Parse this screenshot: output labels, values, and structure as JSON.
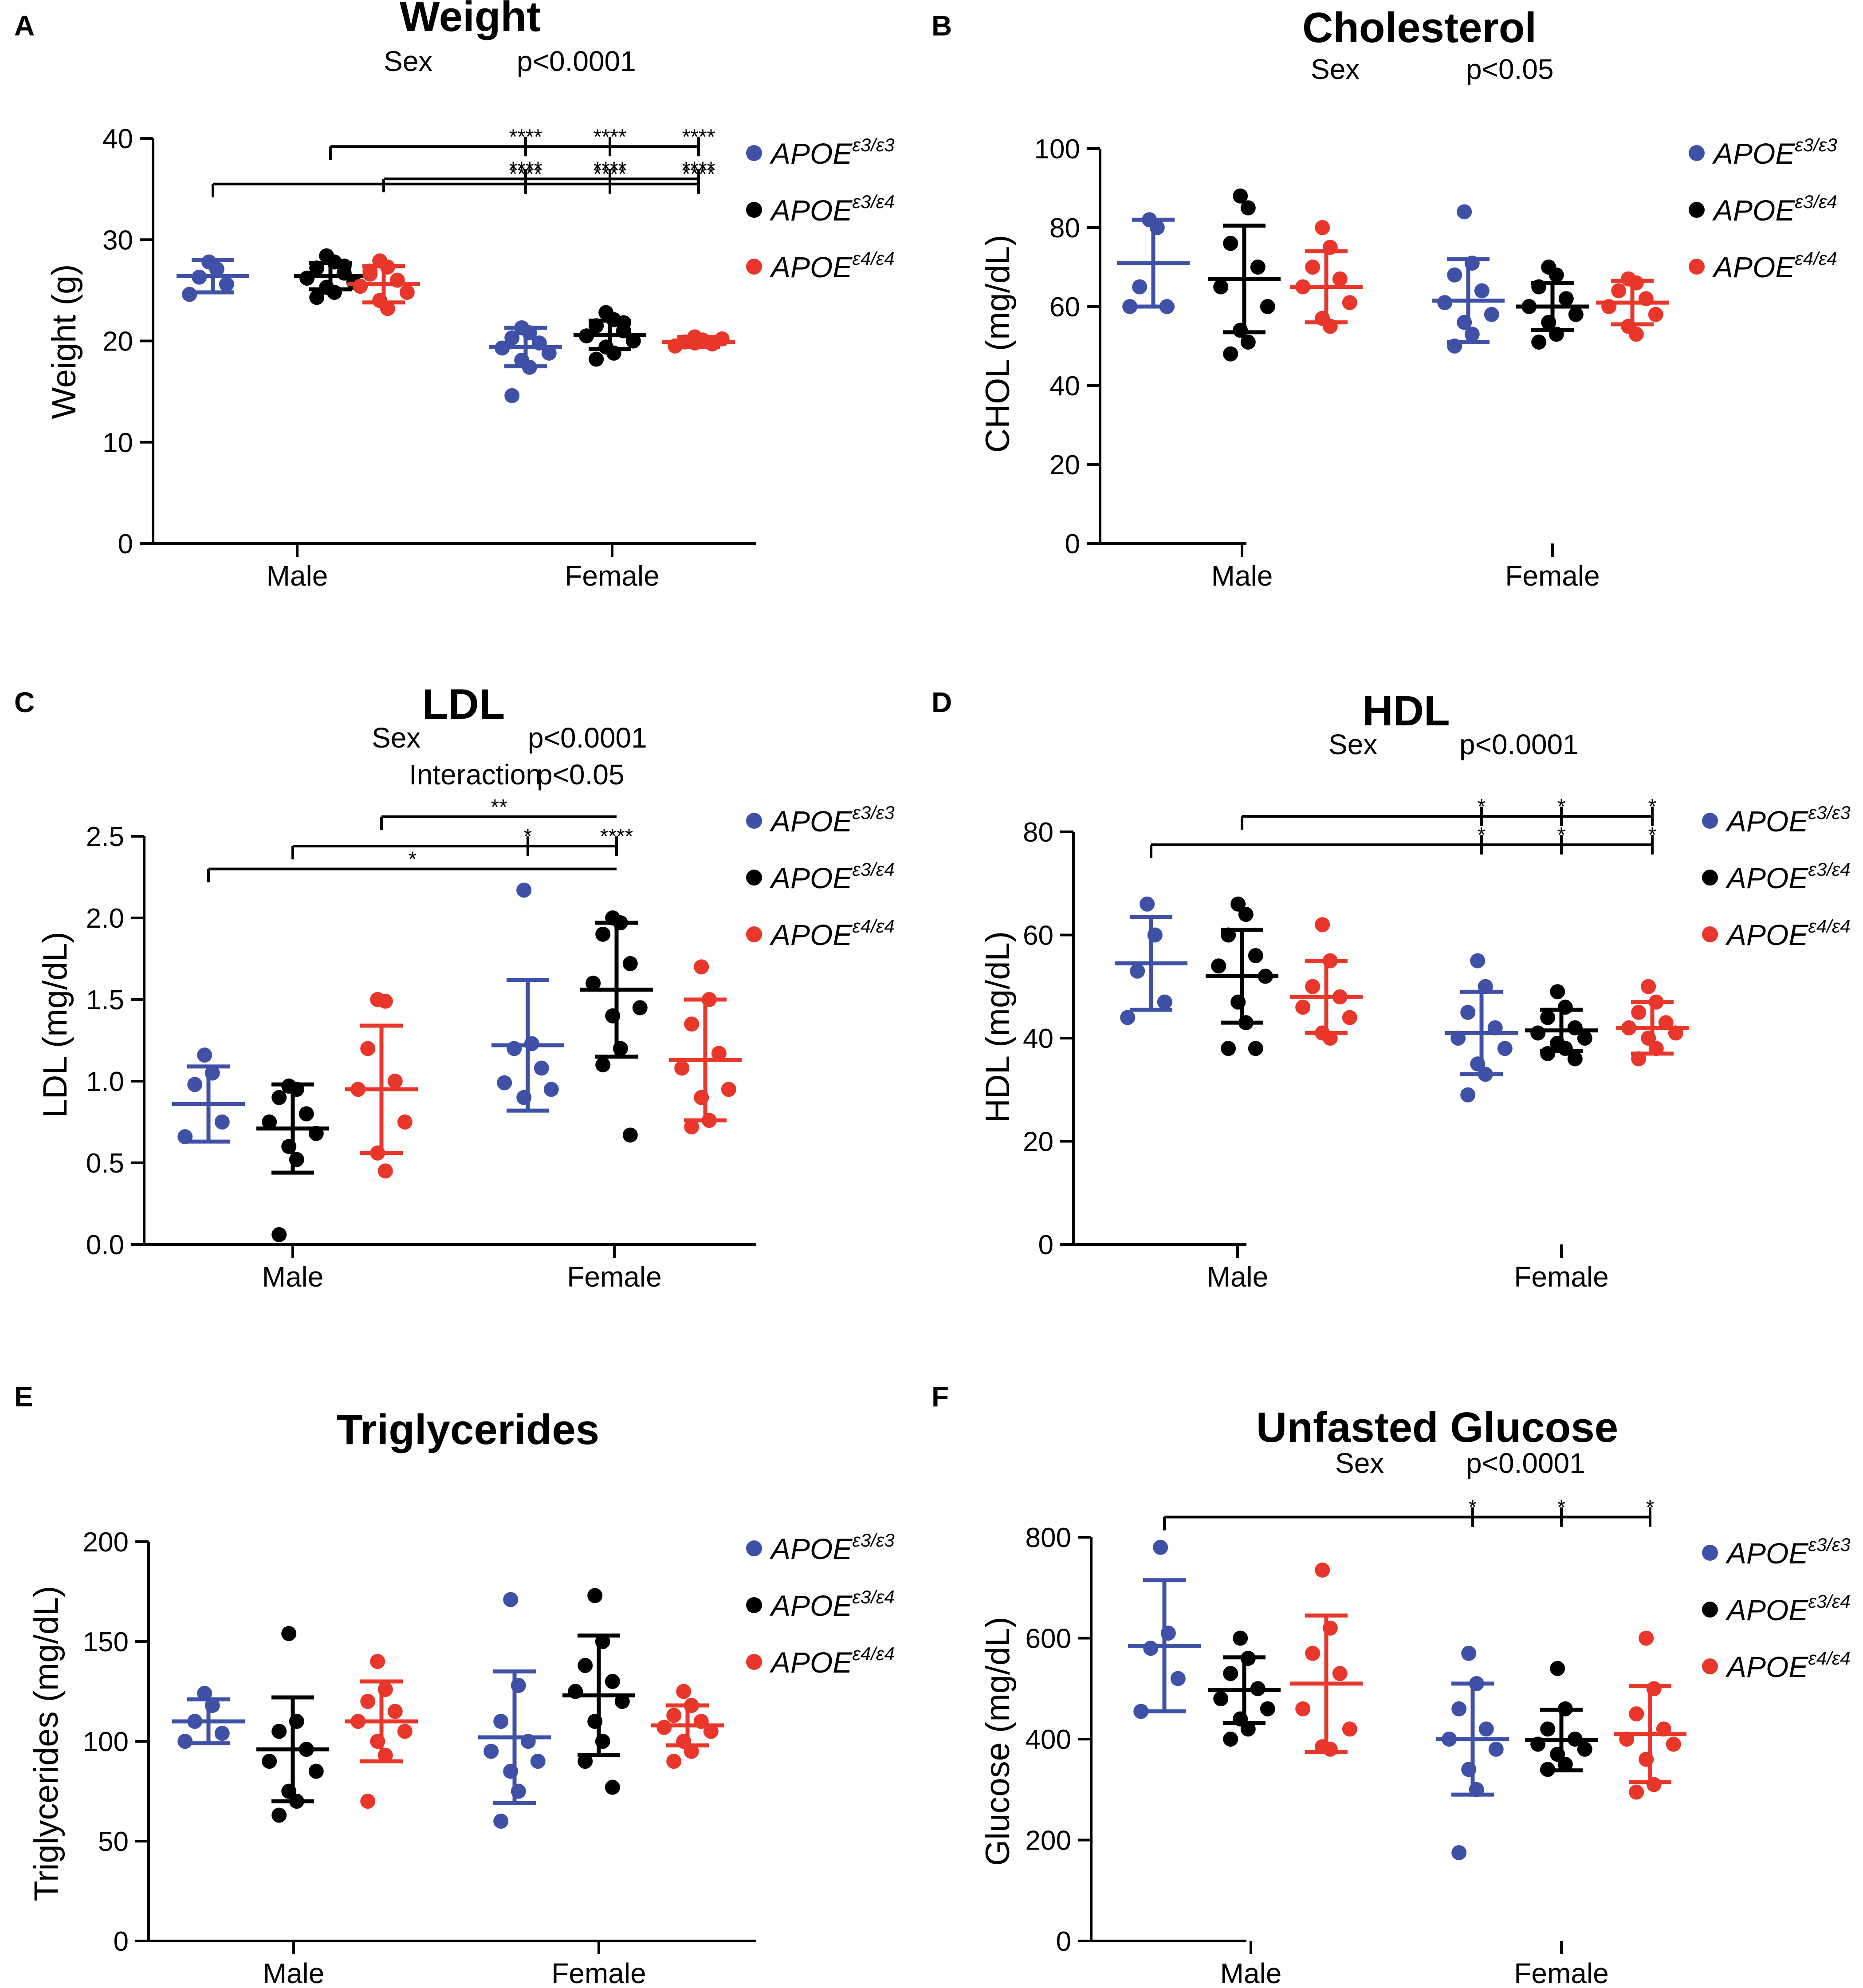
{
  "colors": {
    "e33": "#3f51a6",
    "e34": "#000000",
    "e44": "#e8372a"
  },
  "legend": [
    {
      "base": "APOE",
      "sup": "ε3/ε3",
      "color": "#3f51a6"
    },
    {
      "base": "APOE",
      "sup": "ε3/ε4",
      "color": "#000000"
    },
    {
      "base": "APOE",
      "sup": "ε4/ε4",
      "color": "#e8372a"
    }
  ],
  "chart_data": [
    {
      "panel": "A",
      "type": "scatter",
      "title": "Weight",
      "stats": [
        {
          "label": "Sex",
          "value": "p<0.0001"
        }
      ],
      "ylabel": "Weight (g)",
      "ylim": [
        0,
        40
      ],
      "yticks": [
        "0",
        "10",
        "20",
        "30",
        "40"
      ],
      "categories": [
        "Male",
        "Female"
      ],
      "series": [
        {
          "name": "APOEε3/ε3",
          "sex": "Male",
          "mean": 26.4,
          "sd": 1.6,
          "points": [
            27.8,
            27.1,
            26.3,
            25.6,
            24.6
          ]
        },
        {
          "name": "APOEε3/ε4",
          "sex": "Male",
          "mean": 26.4,
          "sd": 1.3,
          "points": [
            28.4,
            27.8,
            27.2,
            26.7,
            26.2,
            25.8,
            25.3,
            24.8,
            24.3,
            27.4
          ]
        },
        {
          "name": "APOEε4/ε4",
          "sex": "Male",
          "mean": 25.6,
          "sd": 1.8,
          "points": [
            27.9,
            27.3,
            26.6,
            26.0,
            25.4,
            24.8,
            24.0,
            23.2,
            26.9
          ]
        },
        {
          "name": "APOEε3/ε3",
          "sex": "Female",
          "mean": 19.4,
          "sd": 1.9,
          "points": [
            21.3,
            20.8,
            20.3,
            19.8,
            19.3,
            18.8,
            18.1,
            17.4,
            14.6
          ]
        },
        {
          "name": "APOEε3/ε4",
          "sex": "Female",
          "mean": 20.6,
          "sd": 1.4,
          "points": [
            22.8,
            22.1,
            21.5,
            21.0,
            20.5,
            20.0,
            19.4,
            18.8,
            18.2,
            21.8
          ]
        },
        {
          "name": "APOEε4/ε4",
          "sex": "Female",
          "mean": 19.9,
          "sd": 0.5,
          "points": [
            20.4,
            20.1,
            19.9,
            19.7,
            19.5,
            20.2,
            19.8,
            20.0
          ]
        }
      ],
      "brackets": [
        {
          "from": "Male|APOEε4/ε4",
          "y": 36.0,
          "stars": [
            "****",
            "****",
            "****"
          ]
        },
        {
          "from": "Male|APOEε3/ε4",
          "y": 39.2,
          "stars": [
            "****",
            "****",
            "****"
          ]
        },
        {
          "from": "Male|APOEε3/ε3",
          "y": 35.5,
          "stars": [
            "****",
            "****",
            "****"
          ]
        }
      ]
    },
    {
      "panel": "B",
      "type": "scatter",
      "title": "Cholesterol",
      "stats": [
        {
          "label": "Sex",
          "value": "p<0.05"
        }
      ],
      "ylabel": "CHOL (mg/dL)",
      "ylim": [
        0,
        100
      ],
      "yticks": [
        "0",
        "20",
        "40",
        "60",
        "80",
        "100"
      ],
      "categories": [
        "Male",
        "Female"
      ],
      "series": [
        {
          "name": "APOEε3/ε3",
          "sex": "Male",
          "mean": 71,
          "sd": 11,
          "points": [
            82,
            80,
            65,
            60,
            60
          ]
        },
        {
          "name": "APOEε3/ε4",
          "sex": "Male",
          "mean": 67,
          "sd": 13.5,
          "points": [
            88,
            85,
            76,
            70,
            65,
            60,
            54,
            51,
            48
          ]
        },
        {
          "name": "APOEε4/ε4",
          "sex": "Male",
          "mean": 65,
          "sd": 9,
          "points": [
            80,
            75,
            70,
            67,
            65,
            61,
            57,
            55
          ]
        },
        {
          "name": "APOEε3/ε3",
          "sex": "Female",
          "mean": 61.5,
          "sd": 10.5,
          "points": [
            84,
            71,
            68,
            64,
            61,
            58,
            56,
            53,
            50
          ]
        },
        {
          "name": "APOEε3/ε4",
          "sex": "Female",
          "mean": 60,
          "sd": 6,
          "points": [
            70,
            68,
            65,
            62,
            60,
            58,
            56,
            53,
            51
          ]
        },
        {
          "name": "APOEε4/ε4",
          "sex": "Female",
          "mean": 61,
          "sd": 5.5,
          "points": [
            67,
            66,
            64,
            62,
            60,
            58,
            55,
            53
          ]
        }
      ],
      "brackets": []
    },
    {
      "panel": "C",
      "type": "scatter",
      "title": "LDL",
      "stats": [
        {
          "label": "Sex",
          "value": "p<0.0001"
        },
        {
          "label": "Interaction",
          "value": "p<0.05"
        }
      ],
      "ylabel": "LDL (mg/dL)",
      "ylim": [
        0,
        2.5
      ],
      "yticks": [
        "0.0",
        "0.5",
        "1.0",
        "1.5",
        "2.0",
        "2.5"
      ],
      "categories": [
        "Male",
        "Female"
      ],
      "series": [
        {
          "name": "APOEε3/ε3",
          "sex": "Male",
          "mean": 0.86,
          "sd": 0.23,
          "points": [
            1.16,
            1.05,
            0.98,
            0.75,
            0.66
          ]
        },
        {
          "name": "APOEε3/ε4",
          "sex": "Male",
          "mean": 0.71,
          "sd": 0.27,
          "points": [
            0.97,
            0.95,
            0.9,
            0.8,
            0.75,
            0.68,
            0.6,
            0.52,
            0.06
          ]
        },
        {
          "name": "APOEε4/ε4",
          "sex": "Male",
          "mean": 0.95,
          "sd": 0.39,
          "points": [
            1.5,
            1.49,
            1.2,
            1.0,
            0.95,
            0.75,
            0.56,
            0.45
          ]
        },
        {
          "name": "APOEε3/ε3",
          "sex": "Female",
          "mean": 1.22,
          "sd": 0.4,
          "points": [
            2.17,
            1.23,
            1.2,
            1.08,
            0.99,
            0.95,
            0.9
          ]
        },
        {
          "name": "APOEε3/ε4",
          "sex": "Female",
          "mean": 1.56,
          "sd": 0.41,
          "points": [
            2.0,
            1.97,
            1.9,
            1.72,
            1.6,
            1.45,
            1.4,
            1.2,
            1.1,
            0.67
          ]
        },
        {
          "name": "APOEε4/ε4",
          "sex": "Female",
          "mean": 1.13,
          "sd": 0.37,
          "points": [
            1.7,
            1.5,
            1.35,
            1.17,
            1.08,
            0.95,
            0.9,
            0.76,
            0.72
          ]
        }
      ],
      "brackets": [
        {
          "from": "Male|APOEε4/ε4",
          "to": "Female|APOEε3/ε4",
          "y": 2.62,
          "stars": [
            "**"
          ],
          "at": [
            "mid"
          ]
        },
        {
          "from": "Male|APOEε3/ε4",
          "to": "Female|APOEε3/ε4",
          "y": 2.44,
          "stars": [
            "*",
            "****"
          ],
          "at": [
            "Female|APOEε3/ε3",
            "Female|APOEε3/ε4"
          ]
        },
        {
          "from": "Male|APOEε3/ε3",
          "to": "Female|APOEε3/ε4",
          "y": 2.3,
          "stars": [
            "*"
          ],
          "at": [
            "mid"
          ]
        }
      ]
    },
    {
      "panel": "D",
      "type": "scatter",
      "title": "HDL",
      "stats": [
        {
          "label": "Sex",
          "value": "p<0.0001"
        }
      ],
      "ylabel": "HDL (mg/dL)",
      "ylim": [
        0,
        80
      ],
      "yticks": [
        "0",
        "20",
        "40",
        "60",
        "80"
      ],
      "categories": [
        "Male",
        "Female"
      ],
      "series": [
        {
          "name": "APOEε3/ε3",
          "sex": "Male",
          "mean": 54.5,
          "sd": 9,
          "points": [
            66,
            60,
            53,
            47,
            44
          ]
        },
        {
          "name": "APOEε3/ε4",
          "sex": "Male",
          "mean": 52,
          "sd": 9,
          "points": [
            66,
            64,
            60,
            56,
            54,
            52,
            47,
            43,
            38,
            38
          ]
        },
        {
          "name": "APOEε4/ε4",
          "sex": "Male",
          "mean": 48,
          "sd": 7,
          "points": [
            62,
            55,
            50,
            48,
            46,
            44,
            41,
            40
          ]
        },
        {
          "name": "APOEε3/ε3",
          "sex": "Female",
          "mean": 41,
          "sd": 8,
          "points": [
            55,
            50,
            45,
            42,
            40,
            38,
            35,
            33,
            29
          ]
        },
        {
          "name": "APOEε3/ε4",
          "sex": "Female",
          "mean": 41.5,
          "sd": 4,
          "points": [
            49,
            46,
            44,
            42,
            41,
            40,
            39,
            38,
            37,
            36
          ]
        },
        {
          "name": "APOEε4/ε4",
          "sex": "Female",
          "mean": 42,
          "sd": 5,
          "points": [
            50,
            47,
            45,
            43,
            42,
            41,
            40,
            38,
            36
          ]
        }
      ],
      "brackets": [
        {
          "from": "Male|APOEε3/ε4",
          "y": 83,
          "stars": [
            "*",
            "*",
            "*"
          ]
        },
        {
          "from": "Male|APOEε3/ε3",
          "y": 77.5,
          "stars": [
            "*",
            "*",
            "*"
          ]
        }
      ]
    },
    {
      "panel": "E",
      "type": "scatter",
      "title": "Triglycerides",
      "stats": [],
      "ylabel": "Triglycerides (mg/dL)",
      "ylim": [
        0,
        200
      ],
      "yticks": [
        "0",
        "50",
        "100",
        "150",
        "200"
      ],
      "categories": [
        "Male",
        "Female"
      ],
      "series": [
        {
          "name": "APOEε3/ε3",
          "sex": "Male",
          "mean": 110,
          "sd": 11,
          "points": [
            124,
            118,
            110,
            104,
            100
          ]
        },
        {
          "name": "APOEε3/ε4",
          "sex": "Male",
          "mean": 96,
          "sd": 26,
          "points": [
            154,
            110,
            105,
            96,
            90,
            85,
            75,
            70,
            63
          ]
        },
        {
          "name": "APOEε4/ε4",
          "sex": "Male",
          "mean": 110,
          "sd": 20,
          "points": [
            140,
            126,
            120,
            115,
            110,
            105,
            100,
            93,
            70
          ]
        },
        {
          "name": "APOEε3/ε3",
          "sex": "Female",
          "mean": 102,
          "sd": 33,
          "points": [
            171,
            128,
            110,
            100,
            95,
            90,
            85,
            75,
            60
          ]
        },
        {
          "name": "APOEε3/ε4",
          "sex": "Female",
          "mean": 123,
          "sd": 30,
          "points": [
            173,
            150,
            138,
            130,
            125,
            120,
            110,
            100,
            90,
            77
          ]
        },
        {
          "name": "APOEε4/ε4",
          "sex": "Female",
          "mean": 108,
          "sd": 10,
          "points": [
            125,
            118,
            113,
            110,
            107,
            105,
            100,
            95,
            90
          ]
        }
      ],
      "brackets": []
    },
    {
      "panel": "F",
      "type": "scatter",
      "title": "Unfasted Glucose",
      "stats": [
        {
          "label": "Sex",
          "value": "p<0.0001"
        }
      ],
      "ylabel": "Glucose (mg/dL)",
      "ylim": [
        0,
        800
      ],
      "yticks": [
        "0",
        "200",
        "400",
        "600",
        "800"
      ],
      "categories": [
        "Male",
        "Female"
      ],
      "series": [
        {
          "name": "APOEε3/ε3",
          "sex": "Male",
          "mean": 585,
          "sd": 130,
          "points": [
            780,
            610,
            580,
            520,
            455
          ]
        },
        {
          "name": "APOEε3/ε4",
          "sex": "Male",
          "mean": 497,
          "sd": 65,
          "points": [
            600,
            560,
            530,
            500,
            480,
            460,
            440,
            420,
            400
          ]
        },
        {
          "name": "APOEε4/ε4",
          "sex": "Male",
          "mean": 510,
          "sd": 135,
          "points": [
            735,
            620,
            570,
            530,
            460,
            420,
            385,
            380
          ]
        },
        {
          "name": "APOEε3/ε3",
          "sex": "Female",
          "mean": 400,
          "sd": 110,
          "points": [
            570,
            510,
            460,
            420,
            400,
            380,
            340,
            300,
            175
          ]
        },
        {
          "name": "APOEε3/ε4",
          "sex": "Female",
          "mean": 398,
          "sd": 60,
          "points": [
            540,
            460,
            420,
            400,
            390,
            380,
            370,
            350,
            340
          ]
        },
        {
          "name": "APOEε4/ε4",
          "sex": "Female",
          "mean": 410,
          "sd": 95,
          "points": [
            600,
            500,
            450,
            420,
            400,
            390,
            360,
            310,
            295
          ]
        }
      ],
      "brackets": [
        {
          "from": "Male|APOEε3/ε3",
          "y": 840,
          "stars": [
            "*",
            "*",
            "*"
          ]
        }
      ]
    }
  ]
}
